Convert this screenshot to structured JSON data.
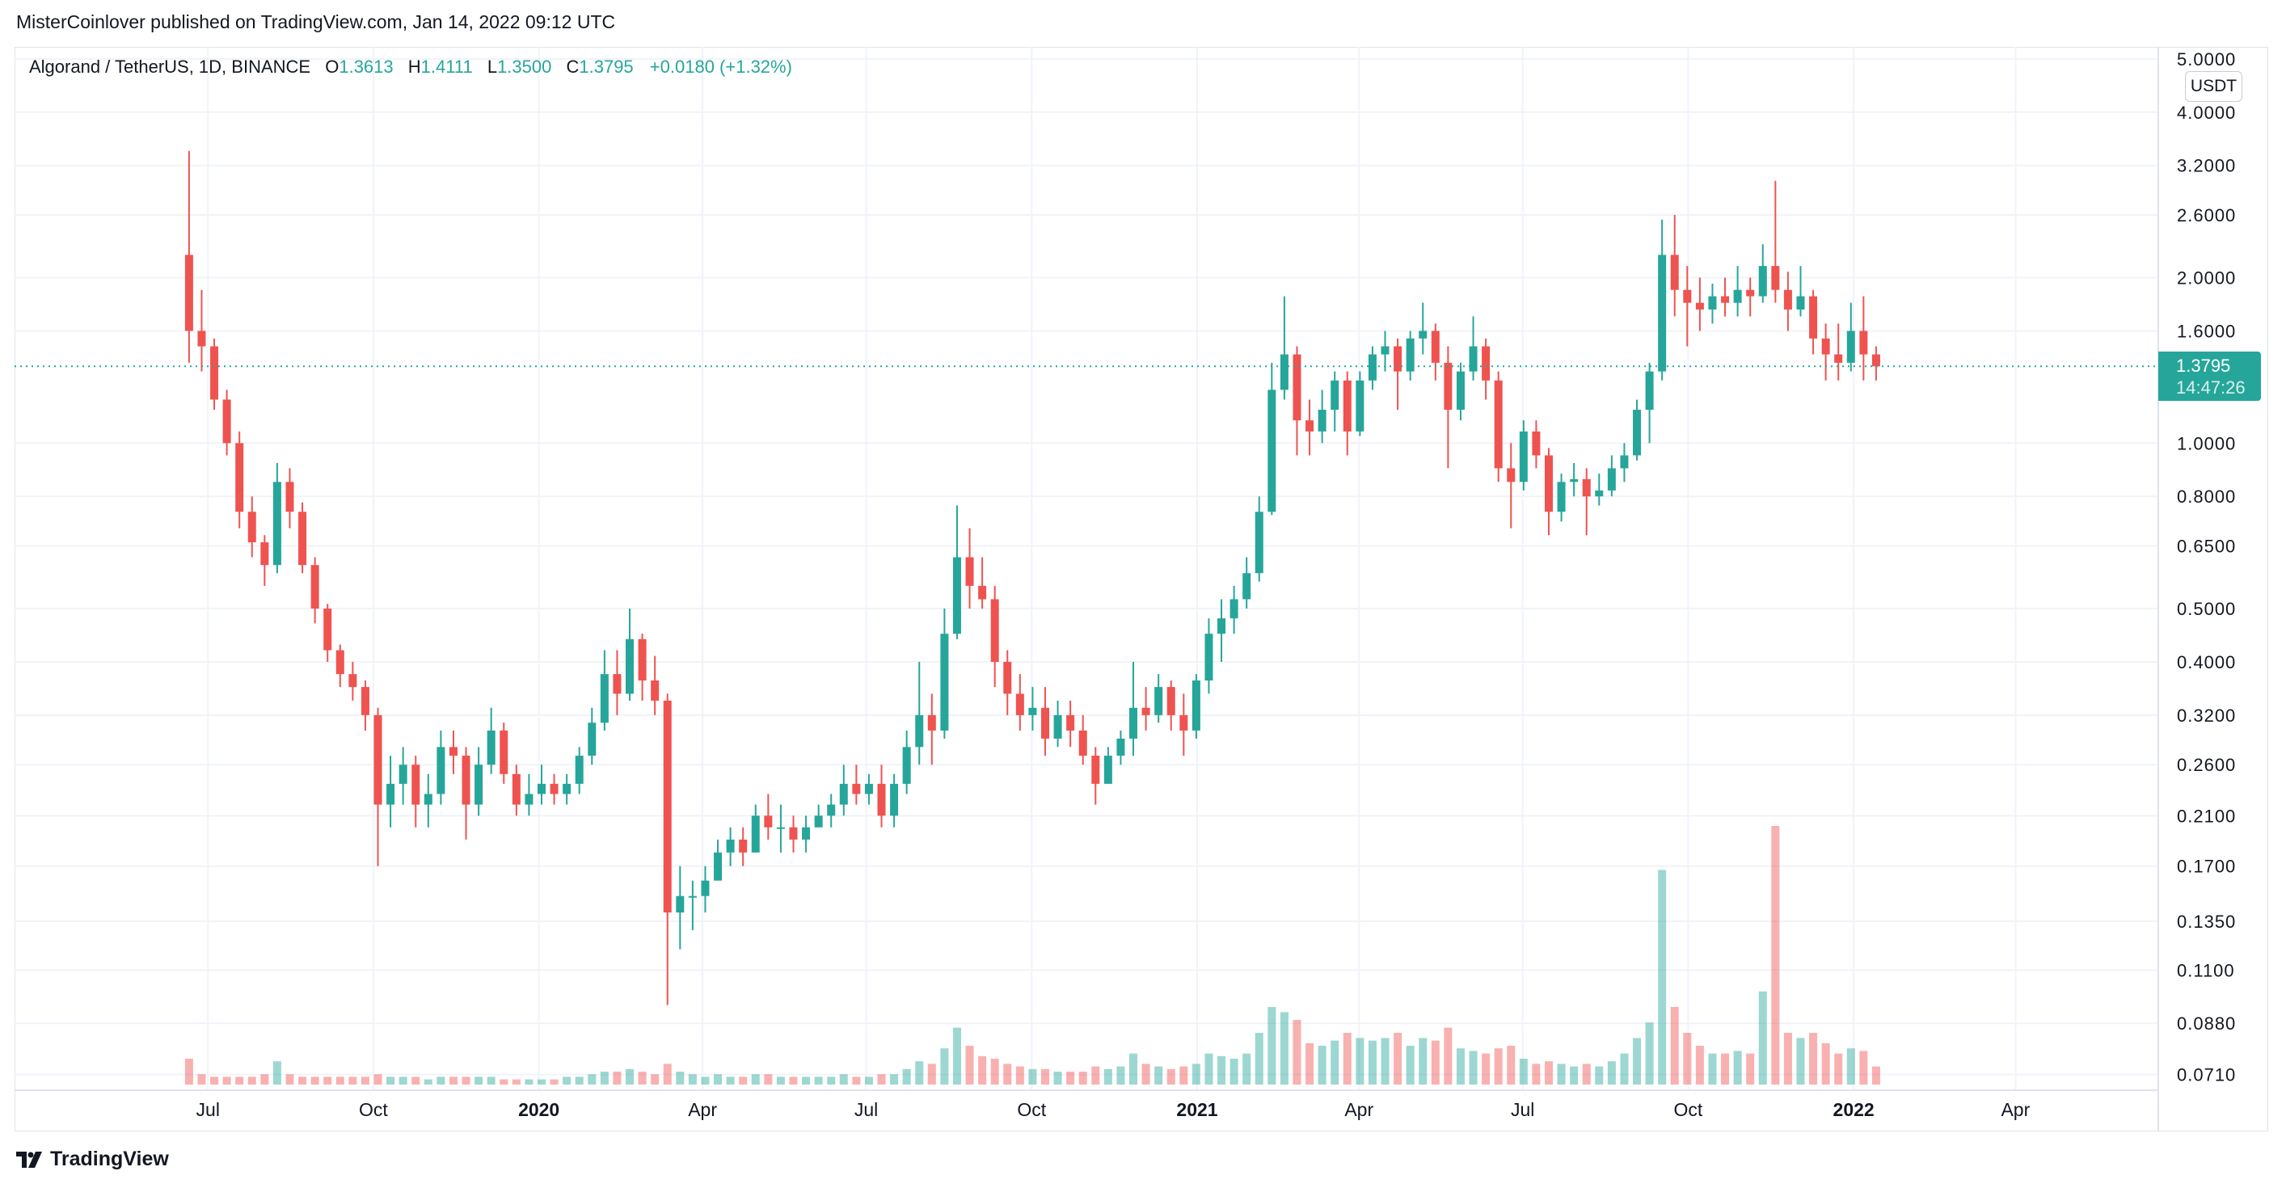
{
  "header": {
    "published": "MisterCoinlover published on TradingView.com, Jan 14, 2022 09:12 UTC"
  },
  "legend": {
    "symbol": "Algorand / TetherUS, 1D, BINANCE",
    "o_label": "O",
    "o": "1.3613",
    "h_label": "H",
    "h": "1.4111",
    "l_label": "L",
    "l": "1.3500",
    "c_label": "C",
    "c": "1.3795",
    "change": "+0.0180 (+1.32%)"
  },
  "price_axis": {
    "currency": "USDT",
    "last_price": "1.3795",
    "countdown": "14:47:26"
  },
  "footer": {
    "logo_text": "TradingView"
  },
  "colors": {
    "up": "#26a69a",
    "down": "#ef5350",
    "grid": "#f0f3fa"
  },
  "chart_data": {
    "type": "candlestick",
    "title": "",
    "scale": "log",
    "grid": true,
    "ylim": [
      0.07,
      5.0
    ],
    "last_price": 1.3795,
    "y_ticks": [
      "5.0000",
      "4.0000",
      "3.2000",
      "2.6000",
      "2.0000",
      "1.6000",
      "1.0000",
      "0.8000",
      "0.6500",
      "0.5000",
      "0.4000",
      "0.3200",
      "0.2600",
      "0.2100",
      "0.1700",
      "0.1350",
      "0.1100",
      "0.0880",
      "0.0710"
    ],
    "x_ticks": [
      {
        "date": "2019-07-01",
        "label": "Jul",
        "bold": false
      },
      {
        "date": "2019-10-01",
        "label": "Oct",
        "bold": false
      },
      {
        "date": "2020-01-01",
        "label": "2020",
        "bold": true
      },
      {
        "date": "2020-04-01",
        "label": "Apr",
        "bold": false
      },
      {
        "date": "2020-07-01",
        "label": "Jul",
        "bold": false
      },
      {
        "date": "2020-10-01",
        "label": "Oct",
        "bold": false
      },
      {
        "date": "2021-01-01",
        "label": "2021",
        "bold": true
      },
      {
        "date": "2021-04-01",
        "label": "Apr",
        "bold": false
      },
      {
        "date": "2021-07-01",
        "label": "Jul",
        "bold": false
      },
      {
        "date": "2021-10-01",
        "label": "Oct",
        "bold": false
      },
      {
        "date": "2022-01-01",
        "label": "2022",
        "bold": true
      },
      {
        "date": "2022-04-01",
        "label": "Apr",
        "bold": false
      }
    ],
    "columns": [
      "week_start",
      "open",
      "high",
      "low",
      "close",
      "relative_volume"
    ],
    "candles": [
      [
        "2019-06-17",
        2.2,
        3.4,
        1.4,
        1.6,
        10
      ],
      [
        "2019-06-24",
        1.6,
        1.9,
        1.35,
        1.5,
        4
      ],
      [
        "2019-07-01",
        1.5,
        1.55,
        1.15,
        1.2,
        3
      ],
      [
        "2019-07-08",
        1.2,
        1.25,
        0.95,
        1.0,
        3
      ],
      [
        "2019-07-15",
        1.0,
        1.05,
        0.7,
        0.75,
        3
      ],
      [
        "2019-07-22",
        0.75,
        0.8,
        0.62,
        0.66,
        3
      ],
      [
        "2019-07-29",
        0.66,
        0.68,
        0.55,
        0.6,
        4
      ],
      [
        "2019-08-05",
        0.6,
        0.92,
        0.58,
        0.85,
        9
      ],
      [
        "2019-08-12",
        0.85,
        0.9,
        0.7,
        0.75,
        4
      ],
      [
        "2019-08-19",
        0.75,
        0.78,
        0.58,
        0.6,
        3
      ],
      [
        "2019-08-26",
        0.6,
        0.62,
        0.47,
        0.5,
        3
      ],
      [
        "2019-09-02",
        0.5,
        0.51,
        0.4,
        0.42,
        3
      ],
      [
        "2019-09-09",
        0.42,
        0.43,
        0.36,
        0.38,
        3
      ],
      [
        "2019-09-16",
        0.38,
        0.4,
        0.34,
        0.36,
        3
      ],
      [
        "2019-09-23",
        0.36,
        0.37,
        0.3,
        0.32,
        3
      ],
      [
        "2019-09-30",
        0.32,
        0.33,
        0.17,
        0.22,
        4
      ],
      [
        "2019-10-07",
        0.22,
        0.27,
        0.2,
        0.24,
        3
      ],
      [
        "2019-10-14",
        0.24,
        0.28,
        0.22,
        0.26,
        3
      ],
      [
        "2019-10-21",
        0.26,
        0.27,
        0.2,
        0.22,
        3
      ],
      [
        "2019-10-28",
        0.22,
        0.25,
        0.2,
        0.23,
        2
      ],
      [
        "2019-11-04",
        0.23,
        0.3,
        0.22,
        0.28,
        3
      ],
      [
        "2019-11-11",
        0.28,
        0.3,
        0.25,
        0.27,
        3
      ],
      [
        "2019-11-18",
        0.27,
        0.28,
        0.19,
        0.22,
        3
      ],
      [
        "2019-11-25",
        0.22,
        0.28,
        0.21,
        0.26,
        3
      ],
      [
        "2019-12-02",
        0.26,
        0.33,
        0.25,
        0.3,
        3
      ],
      [
        "2019-12-09",
        0.3,
        0.31,
        0.24,
        0.25,
        2
      ],
      [
        "2019-12-16",
        0.25,
        0.26,
        0.21,
        0.22,
        2
      ],
      [
        "2019-12-23",
        0.22,
        0.25,
        0.21,
        0.23,
        2
      ],
      [
        "2019-12-30",
        0.23,
        0.26,
        0.22,
        0.24,
        2
      ],
      [
        "2020-01-06",
        0.24,
        0.25,
        0.22,
        0.23,
        2
      ],
      [
        "2020-01-13",
        0.23,
        0.25,
        0.22,
        0.24,
        3
      ],
      [
        "2020-01-20",
        0.24,
        0.28,
        0.23,
        0.27,
        3
      ],
      [
        "2020-01-27",
        0.27,
        0.33,
        0.26,
        0.31,
        4
      ],
      [
        "2020-02-03",
        0.31,
        0.42,
        0.3,
        0.38,
        5
      ],
      [
        "2020-02-10",
        0.38,
        0.42,
        0.32,
        0.35,
        5
      ],
      [
        "2020-02-17",
        0.35,
        0.5,
        0.34,
        0.44,
        6
      ],
      [
        "2020-02-24",
        0.44,
        0.45,
        0.34,
        0.37,
        5
      ],
      [
        "2020-03-02",
        0.37,
        0.41,
        0.32,
        0.34,
        4
      ],
      [
        "2020-03-09",
        0.34,
        0.35,
        0.095,
        0.14,
        8
      ],
      [
        "2020-03-16",
        0.14,
        0.17,
        0.12,
        0.15,
        5
      ],
      [
        "2020-03-23",
        0.15,
        0.16,
        0.13,
        0.15,
        4
      ],
      [
        "2020-03-30",
        0.15,
        0.17,
        0.14,
        0.16,
        3
      ],
      [
        "2020-04-06",
        0.16,
        0.19,
        0.16,
        0.18,
        4
      ],
      [
        "2020-04-13",
        0.18,
        0.2,
        0.17,
        0.19,
        3
      ],
      [
        "2020-04-20",
        0.19,
        0.2,
        0.17,
        0.18,
        3
      ],
      [
        "2020-04-27",
        0.18,
        0.22,
        0.18,
        0.21,
        4
      ],
      [
        "2020-05-04",
        0.21,
        0.23,
        0.19,
        0.2,
        4
      ],
      [
        "2020-05-11",
        0.2,
        0.22,
        0.18,
        0.2,
        3
      ],
      [
        "2020-05-18",
        0.2,
        0.21,
        0.18,
        0.19,
        3
      ],
      [
        "2020-05-25",
        0.19,
        0.21,
        0.18,
        0.2,
        3
      ],
      [
        "2020-06-01",
        0.2,
        0.22,
        0.2,
        0.21,
        3
      ],
      [
        "2020-06-08",
        0.21,
        0.23,
        0.2,
        0.22,
        3
      ],
      [
        "2020-06-15",
        0.22,
        0.26,
        0.21,
        0.24,
        4
      ],
      [
        "2020-06-22",
        0.24,
        0.26,
        0.22,
        0.23,
        3
      ],
      [
        "2020-06-29",
        0.23,
        0.25,
        0.22,
        0.24,
        3
      ],
      [
        "2020-07-06",
        0.24,
        0.26,
        0.2,
        0.21,
        4
      ],
      [
        "2020-07-13",
        0.21,
        0.25,
        0.2,
        0.24,
        4
      ],
      [
        "2020-07-20",
        0.24,
        0.3,
        0.23,
        0.28,
        6
      ],
      [
        "2020-07-27",
        0.28,
        0.4,
        0.26,
        0.32,
        9
      ],
      [
        "2020-08-03",
        0.32,
        0.35,
        0.26,
        0.3,
        8
      ],
      [
        "2020-08-10",
        0.3,
        0.5,
        0.29,
        0.45,
        14
      ],
      [
        "2020-08-17",
        0.45,
        0.77,
        0.44,
        0.62,
        22
      ],
      [
        "2020-08-24",
        0.62,
        0.7,
        0.5,
        0.55,
        15
      ],
      [
        "2020-08-31",
        0.55,
        0.62,
        0.5,
        0.52,
        11
      ],
      [
        "2020-09-07",
        0.52,
        0.55,
        0.36,
        0.4,
        10
      ],
      [
        "2020-09-14",
        0.4,
        0.42,
        0.32,
        0.35,
        8
      ],
      [
        "2020-09-21",
        0.35,
        0.38,
        0.3,
        0.32,
        7
      ],
      [
        "2020-09-28",
        0.32,
        0.36,
        0.3,
        0.33,
        6
      ],
      [
        "2020-10-05",
        0.33,
        0.36,
        0.27,
        0.29,
        6
      ],
      [
        "2020-10-12",
        0.29,
        0.34,
        0.28,
        0.32,
        5
      ],
      [
        "2020-10-19",
        0.32,
        0.34,
        0.28,
        0.3,
        5
      ],
      [
        "2020-10-26",
        0.3,
        0.32,
        0.26,
        0.27,
        5
      ],
      [
        "2020-11-02",
        0.27,
        0.28,
        0.22,
        0.24,
        7
      ],
      [
        "2020-11-09",
        0.24,
        0.28,
        0.24,
        0.27,
        6
      ],
      [
        "2020-11-16",
        0.27,
        0.3,
        0.26,
        0.29,
        7
      ],
      [
        "2020-11-23",
        0.29,
        0.4,
        0.27,
        0.33,
        12
      ],
      [
        "2020-11-30",
        0.33,
        0.36,
        0.3,
        0.32,
        8
      ],
      [
        "2020-12-07",
        0.32,
        0.38,
        0.31,
        0.36,
        7
      ],
      [
        "2020-12-14",
        0.36,
        0.37,
        0.3,
        0.32,
        6
      ],
      [
        "2020-12-21",
        0.32,
        0.35,
        0.27,
        0.3,
        7
      ],
      [
        "2020-12-28",
        0.3,
        0.38,
        0.29,
        0.37,
        8
      ],
      [
        "2021-01-04",
        0.37,
        0.48,
        0.35,
        0.45,
        12
      ],
      [
        "2021-01-11",
        0.45,
        0.52,
        0.4,
        0.48,
        11
      ],
      [
        "2021-01-18",
        0.48,
        0.55,
        0.45,
        0.52,
        10
      ],
      [
        "2021-01-25",
        0.52,
        0.62,
        0.5,
        0.58,
        12
      ],
      [
        "2021-02-01",
        0.58,
        0.8,
        0.56,
        0.75,
        20
      ],
      [
        "2021-02-08",
        0.75,
        1.4,
        0.74,
        1.25,
        30
      ],
      [
        "2021-02-15",
        1.25,
        1.85,
        1.2,
        1.45,
        28
      ],
      [
        "2021-02-22",
        1.45,
        1.5,
        0.95,
        1.1,
        25
      ],
      [
        "2021-03-01",
        1.1,
        1.2,
        0.95,
        1.05,
        16
      ],
      [
        "2021-03-08",
        1.05,
        1.25,
        1.0,
        1.15,
        15
      ],
      [
        "2021-03-15",
        1.15,
        1.35,
        1.05,
        1.3,
        17
      ],
      [
        "2021-03-22",
        1.3,
        1.35,
        0.95,
        1.05,
        20
      ],
      [
        "2021-03-29",
        1.05,
        1.35,
        1.03,
        1.3,
        18
      ],
      [
        "2021-04-05",
        1.3,
        1.5,
        1.25,
        1.45,
        17
      ],
      [
        "2021-04-12",
        1.45,
        1.6,
        1.35,
        1.5,
        18
      ],
      [
        "2021-04-19",
        1.5,
        1.55,
        1.15,
        1.35,
        20
      ],
      [
        "2021-04-26",
        1.35,
        1.6,
        1.3,
        1.55,
        15
      ],
      [
        "2021-05-03",
        1.55,
        1.8,
        1.45,
        1.6,
        18
      ],
      [
        "2021-05-10",
        1.6,
        1.65,
        1.3,
        1.4,
        17
      ],
      [
        "2021-05-17",
        1.4,
        1.5,
        0.9,
        1.15,
        22
      ],
      [
        "2021-05-24",
        1.15,
        1.4,
        1.1,
        1.35,
        14
      ],
      [
        "2021-05-31",
        1.35,
        1.7,
        1.3,
        1.5,
        13
      ],
      [
        "2021-06-07",
        1.5,
        1.55,
        1.2,
        1.3,
        12
      ],
      [
        "2021-06-14",
        1.3,
        1.35,
        0.85,
        0.9,
        14
      ],
      [
        "2021-06-21",
        0.9,
        1.0,
        0.7,
        0.85,
        15
      ],
      [
        "2021-06-28",
        0.85,
        1.1,
        0.82,
        1.05,
        10
      ],
      [
        "2021-07-05",
        1.05,
        1.1,
        0.9,
        0.95,
        8
      ],
      [
        "2021-07-12",
        0.95,
        0.98,
        0.68,
        0.75,
        9
      ],
      [
        "2021-07-19",
        0.75,
        0.88,
        0.72,
        0.85,
        8
      ],
      [
        "2021-07-26",
        0.85,
        0.92,
        0.8,
        0.86,
        7
      ],
      [
        "2021-08-02",
        0.86,
        0.9,
        0.68,
        0.8,
        8
      ],
      [
        "2021-08-09",
        0.8,
        0.88,
        0.77,
        0.82,
        7
      ],
      [
        "2021-08-16",
        0.82,
        0.95,
        0.8,
        0.9,
        9
      ],
      [
        "2021-08-23",
        0.9,
        1.0,
        0.85,
        0.95,
        12
      ],
      [
        "2021-08-30",
        0.95,
        1.2,
        0.93,
        1.15,
        18
      ],
      [
        "2021-09-06",
        1.15,
        1.4,
        1.0,
        1.35,
        24
      ],
      [
        "2021-09-13",
        1.35,
        2.55,
        1.3,
        2.2,
        83
      ],
      [
        "2021-09-20",
        2.2,
        2.6,
        1.7,
        1.9,
        30
      ],
      [
        "2021-09-27",
        1.9,
        2.1,
        1.5,
        1.8,
        20
      ],
      [
        "2021-10-04",
        1.8,
        2.0,
        1.6,
        1.75,
        15
      ],
      [
        "2021-10-11",
        1.75,
        1.95,
        1.65,
        1.85,
        12
      ],
      [
        "2021-10-18",
        1.85,
        2.0,
        1.7,
        1.8,
        12
      ],
      [
        "2021-10-25",
        1.8,
        2.1,
        1.7,
        1.9,
        13
      ],
      [
        "2021-11-01",
        1.9,
        2.0,
        1.7,
        1.85,
        12
      ],
      [
        "2021-11-08",
        1.85,
        2.3,
        1.8,
        2.1,
        36
      ],
      [
        "2021-11-15",
        2.1,
        3.0,
        1.8,
        1.9,
        100
      ],
      [
        "2021-11-22",
        1.9,
        2.05,
        1.6,
        1.75,
        20
      ],
      [
        "2021-11-29",
        1.75,
        2.1,
        1.7,
        1.85,
        18
      ],
      [
        "2021-12-06",
        1.85,
        1.9,
        1.45,
        1.55,
        20
      ],
      [
        "2021-12-13",
        1.55,
        1.65,
        1.3,
        1.45,
        16
      ],
      [
        "2021-12-20",
        1.45,
        1.65,
        1.3,
        1.4,
        12
      ],
      [
        "2021-12-27",
        1.4,
        1.8,
        1.35,
        1.6,
        14
      ],
      [
        "2022-01-03",
        1.6,
        1.85,
        1.3,
        1.45,
        13
      ],
      [
        "2022-01-10",
        1.45,
        1.5,
        1.3,
        1.3795,
        7
      ]
    ]
  }
}
